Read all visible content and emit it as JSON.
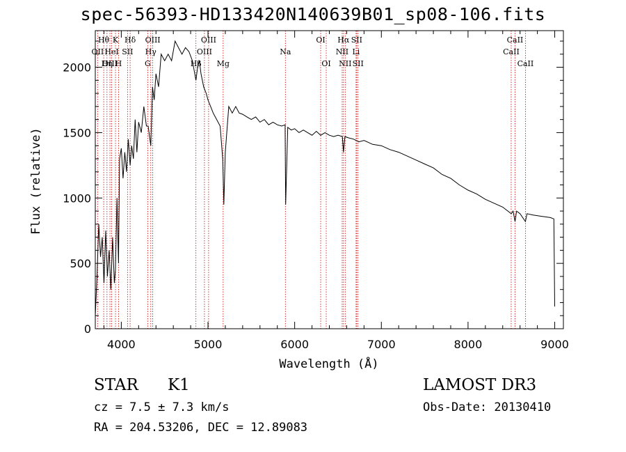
{
  "chart_data": {
    "type": "line",
    "title": "spec-56393-HD133420N140639B01_sp08-106.fits",
    "xlabel": "Wavelength (Å)",
    "ylabel": "Flux (relative)",
    "xlim": [
      3700,
      9100
    ],
    "ylim": [
      0,
      2280
    ],
    "xticks": [
      4000,
      5000,
      6000,
      7000,
      8000,
      9000
    ],
    "yticks": [
      0,
      500,
      1000,
      1500,
      2000
    ],
    "series": [
      {
        "name": "spectrum",
        "x": [
          3700,
          3720,
          3740,
          3760,
          3780,
          3800,
          3820,
          3840,
          3860,
          3880,
          3900,
          3920,
          3933,
          3950,
          3968,
          3980,
          4000,
          4020,
          4040,
          4060,
          4080,
          4102,
          4120,
          4140,
          4160,
          4180,
          4200,
          4230,
          4260,
          4290,
          4310,
          4340,
          4360,
          4380,
          4400,
          4430,
          4460,
          4500,
          4540,
          4580,
          4620,
          4660,
          4700,
          4740,
          4780,
          4820,
          4861,
          4880,
          4900,
          4920,
          4950,
          4980,
          5000,
          5030,
          5060,
          5100,
          5140,
          5170,
          5183,
          5200,
          5240,
          5280,
          5320,
          5360,
          5400,
          5450,
          5500,
          5550,
          5600,
          5650,
          5700,
          5750,
          5800,
          5850,
          5890,
          5896,
          5920,
          5960,
          6000,
          6050,
          6100,
          6150,
          6200,
          6250,
          6300,
          6350,
          6400,
          6450,
          6500,
          6550,
          6563,
          6580,
          6620,
          6680,
          6740,
          6800,
          6900,
          7000,
          7100,
          7200,
          7300,
          7400,
          7500,
          7600,
          7700,
          7800,
          7900,
          8000,
          8100,
          8200,
          8300,
          8400,
          8498,
          8520,
          8542,
          8560,
          8600,
          8662,
          8680,
          8750,
          8850,
          8950,
          8990,
          9000
        ],
        "values": [
          100,
          400,
          800,
          550,
          700,
          350,
          750,
          400,
          600,
          300,
          700,
          350,
          450,
          1000,
          500,
          1300,
          1380,
          1150,
          1350,
          1200,
          1450,
          1250,
          1400,
          1300,
          1600,
          1350,
          1580,
          1500,
          1700,
          1550,
          1550,
          1400,
          1850,
          1750,
          1950,
          1850,
          2100,
          2050,
          2100,
          2050,
          2200,
          2150,
          2100,
          2150,
          2120,
          2050,
          1900,
          2000,
          2050,
          1950,
          1850,
          1800,
          1750,
          1700,
          1650,
          1600,
          1550,
          1300,
          950,
          1350,
          1700,
          1650,
          1700,
          1650,
          1640,
          1620,
          1600,
          1620,
          1580,
          1600,
          1560,
          1580,
          1560,
          1550,
          1560,
          950,
          1540,
          1520,
          1530,
          1500,
          1520,
          1500,
          1480,
          1510,
          1480,
          1500,
          1480,
          1470,
          1480,
          1470,
          1350,
          1470,
          1460,
          1450,
          1430,
          1440,
          1410,
          1400,
          1370,
          1350,
          1320,
          1290,
          1260,
          1230,
          1180,
          1150,
          1100,
          1060,
          1030,
          990,
          960,
          930,
          880,
          900,
          820,
          900,
          880,
          820,
          880,
          870,
          860,
          850,
          840,
          170
        ]
      }
    ],
    "line_markers": {
      "top_row": [
        {
          "label": "Hθ",
          "x": 3797
        },
        {
          "label": "K",
          "x": 3933
        },
        {
          "label": "Hδ",
          "x": 4102
        },
        {
          "label": "OIII",
          "x": 4363
        },
        {
          "label": "OIII",
          "x": 5007
        },
        {
          "label": "OI",
          "x": 6300
        },
        {
          "label": "Hα",
          "x": 6563
        },
        {
          "label": "SII",
          "x": 6716
        },
        {
          "label": "CaII",
          "x": 8542
        }
      ],
      "second_row": [
        {
          "label": "OII",
          "x": 3727
        },
        {
          "label": "HeI",
          "x": 3889
        },
        {
          "label": "SII",
          "x": 4072
        },
        {
          "label": "Hγ",
          "x": 4340
        },
        {
          "label": "OIII",
          "x": 4959
        },
        {
          "label": "Na",
          "x": 5893
        },
        {
          "label": "NII",
          "x": 6548
        },
        {
          "label": "Li",
          "x": 6708
        },
        {
          "label": "CaII",
          "x": 8498
        }
      ],
      "third_row": [
        {
          "label": "OIII",
          "x": 3869
        },
        {
          "label": "Hη",
          "x": 3835
        },
        {
          "label": "H",
          "x": 3968
        },
        {
          "label": "G",
          "x": 4305
        },
        {
          "label": "Hβ",
          "x": 4861
        },
        {
          "label": "Mg",
          "x": 5175
        },
        {
          "label": "OI",
          "x": 6364
        },
        {
          "label": "NII",
          "x": 6583
        },
        {
          "label": "SII",
          "x": 6731
        },
        {
          "label": "CaII",
          "x": 8662
        }
      ]
    }
  },
  "info": {
    "object_class": "STAR",
    "subclass": "K1",
    "cz": "cz = 7.5 ± 7.3 km/s",
    "radec": "RA = 204.53206, DEC =  12.89083",
    "survey": "LAMOST DR3",
    "obs_date": "Obs-Date: 20130410"
  },
  "colors": {
    "line": "#000000",
    "marker": "#cc0000"
  }
}
